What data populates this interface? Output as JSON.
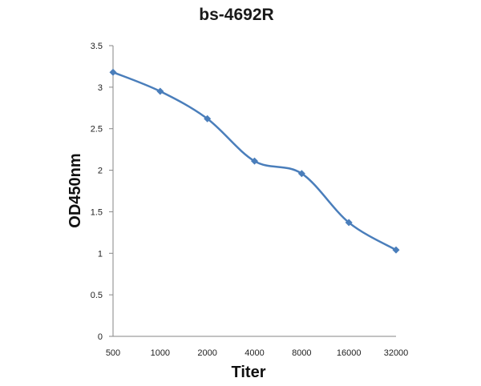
{
  "chart_data": {
    "type": "line",
    "title": "bs-4692R",
    "xlabel": "Titer",
    "ylabel": "OD450nm",
    "categories": [
      "500",
      "1000",
      "2000",
      "4000",
      "8000",
      "16000",
      "32000"
    ],
    "series": [
      {
        "values": [
          3.18,
          2.95,
          2.62,
          2.11,
          1.96,
          1.37,
          1.04
        ]
      }
    ],
    "ylim": [
      0,
      3.5
    ],
    "yticks": [
      "0",
      "0.5",
      "1",
      "1.5",
      "2",
      "2.5",
      "3",
      "3.5"
    ],
    "grid": false,
    "legend": "none",
    "marker": "diamond",
    "smooth": true
  },
  "colors": {
    "series": "#4a7ebb",
    "axis": "#868686"
  }
}
